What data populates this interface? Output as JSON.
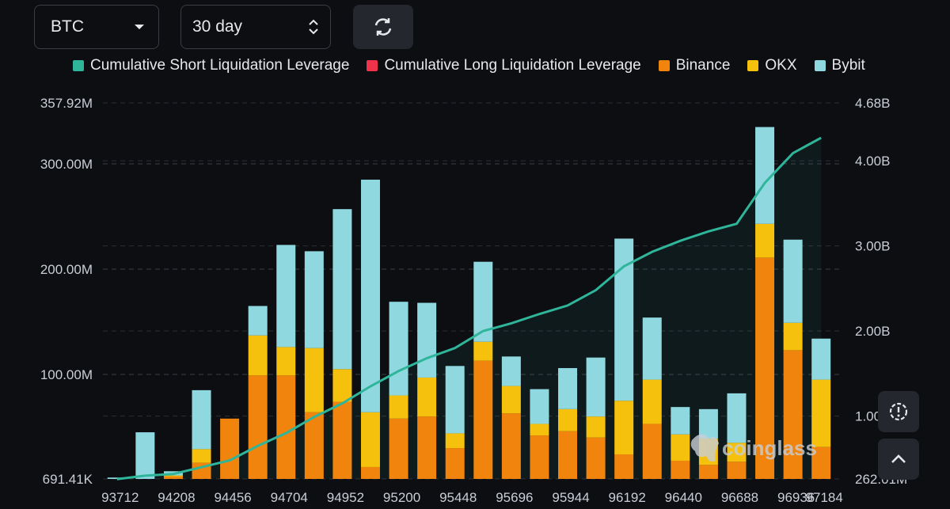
{
  "controls": {
    "coin": "BTC",
    "period": "30 day"
  },
  "legend": [
    {
      "label": "Cumulative Short Liquidation Leverage",
      "color": "#2fb59a"
    },
    {
      "label": "Cumulative Long Liquidation Leverage",
      "color": "#f0334a"
    },
    {
      "label": "Binance",
      "color": "#f0840c"
    },
    {
      "label": "OKX",
      "color": "#f5c10d"
    },
    {
      "label": "Bybit",
      "color": "#8fd8df"
    }
  ],
  "watermark": "coinglass",
  "chart_data": {
    "type": "bar",
    "stacked": true,
    "title": "",
    "x_tick_labels": [
      "93712",
      "94208",
      "94456",
      "94704",
      "94952",
      "95200",
      "95448",
      "95696",
      "95944",
      "96192",
      "96440",
      "96688",
      "96936",
      "97184"
    ],
    "left_axis": {
      "tick_labels": [
        "691.41K",
        "100.00M",
        "200.00M",
        "300.00M",
        "357.92M"
      ],
      "tick_values": [
        0.69141,
        100,
        200,
        300,
        357.92
      ],
      "range": [
        0.69141,
        357.92
      ],
      "unit": "M"
    },
    "right_axis": {
      "tick_labels": [
        "262.01M",
        "1.00B",
        "2.00B",
        "3.00B",
        "4.00B",
        "4.68B"
      ],
      "tick_values": [
        0.26201,
        1.0,
        2.0,
        3.0,
        4.0,
        4.68
      ],
      "range": [
        0.26201,
        4.68
      ],
      "unit": "B"
    },
    "series": [
      {
        "name": "Binance",
        "color": "#f0840c",
        "values": [
          0,
          0,
          3,
          16,
          58,
          99,
          99,
          64,
          74,
          12,
          58,
          60,
          30,
          113,
          63,
          42,
          46,
          40,
          24,
          53,
          18,
          14,
          17,
          211,
          123,
          31
        ]
      },
      {
        "name": "OKX",
        "color": "#f5c10d",
        "values": [
          0,
          0,
          1,
          13,
          0,
          38,
          27,
          61,
          31,
          52,
          22,
          37,
          14,
          18,
          26,
          11,
          21,
          20,
          51,
          42,
          25,
          25,
          18,
          32,
          26,
          64
        ]
      },
      {
        "name": "Bybit",
        "color": "#8fd8df",
        "values": [
          2,
          45,
          4,
          56,
          0,
          28,
          97,
          92,
          152,
          221,
          89,
          71,
          64,
          76,
          28,
          33,
          39,
          56,
          154,
          59,
          26,
          28,
          47,
          92,
          79,
          39
        ]
      }
    ],
    "cumulative_short": {
      "name": "Cumulative Short Liquidation Leverage",
      "color": "#2fb59a",
      "values": [
        0.26,
        0.3,
        0.32,
        0.4,
        0.48,
        0.65,
        0.8,
        0.99,
        1.15,
        1.35,
        1.53,
        1.68,
        1.8,
        2.0,
        2.09,
        2.2,
        2.3,
        2.48,
        2.76,
        2.93,
        3.06,
        3.17,
        3.26,
        3.74,
        4.09,
        4.27
      ]
    }
  }
}
